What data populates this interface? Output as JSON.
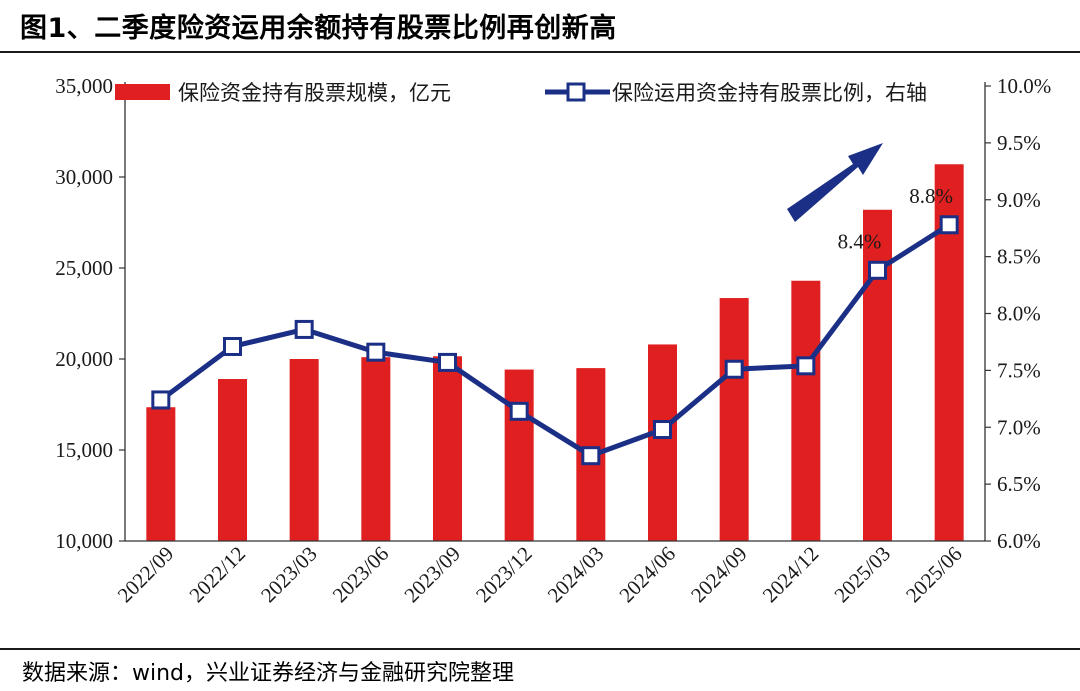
{
  "title": "图1、二季度险资运用余额持有股票比例再创新高",
  "source": "数据来源：wind，兴业证券经济与金融研究院整理",
  "colors": {
    "bar": "#e02020",
    "line": "#1a2f85",
    "marker_fill": "#ffffff",
    "arrow": "#1a2f85"
  },
  "chart_data": {
    "type": "bar",
    "categories": [
      "2022/09",
      "2022/12",
      "2023/03",
      "2023/06",
      "2023/09",
      "2023/12",
      "2024/03",
      "2024/06",
      "2024/09",
      "2024/12",
      "2025/03",
      "2025/06"
    ],
    "series": [
      {
        "name": "保险资金持有股票规模，亿元",
        "type": "bar",
        "axis": "left",
        "values": [
          17350,
          18900,
          20000,
          20100,
          20150,
          19420,
          19500,
          20800,
          23350,
          24300,
          28200,
          30700
        ]
      },
      {
        "name": "保险运用资金持有股票比例，右轴",
        "type": "line",
        "axis": "right",
        "values": [
          7.24,
          7.71,
          7.86,
          7.66,
          7.57,
          7.14,
          6.75,
          6.98,
          7.51,
          7.54,
          8.38,
          8.78
        ]
      }
    ],
    "ylim_left": [
      10000,
      35000
    ],
    "yticks_left": [
      "10,000",
      "15,000",
      "20,000",
      "25,000",
      "30,000",
      "35,000"
    ],
    "ylim_right": [
      6.0,
      10.0
    ],
    "yticks_right": [
      "6.0%",
      "6.5%",
      "7.0%",
      "7.5%",
      "8.0%",
      "8.5%",
      "9.0%",
      "9.5%",
      "10.0%"
    ],
    "annotations": [
      {
        "index": 10,
        "text": "8.4%"
      },
      {
        "index": 11,
        "text": "8.8%"
      }
    ],
    "legend_position": "top",
    "grid": false
  }
}
